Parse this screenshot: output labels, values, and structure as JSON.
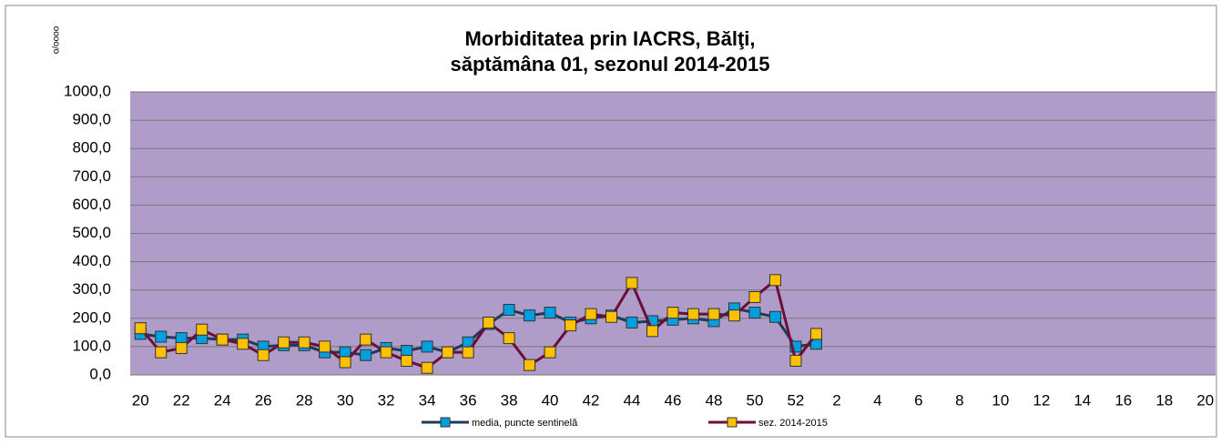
{
  "chart_data": {
    "type": "line",
    "title": [
      "Morbiditatea prin IACRS, Bălţi,",
      "săptămâna 01, sezonul  2014-2015"
    ],
    "y_label": "o/oooo",
    "categories": [
      "20",
      null,
      "22",
      null,
      "24",
      null,
      "26",
      null,
      "28",
      null,
      "30",
      null,
      "32",
      null,
      "34",
      null,
      "36",
      null,
      "38",
      null,
      "40",
      null,
      "42",
      null,
      "44",
      null,
      "46",
      null,
      "48",
      null,
      "50",
      null,
      "52",
      null,
      "2",
      null,
      "4",
      null,
      "6",
      null,
      "8",
      null,
      "10",
      null,
      "12",
      null,
      "14",
      null,
      "16",
      null,
      "18",
      null,
      "20"
    ],
    "series": [
      {
        "name": "media, puncte sentinelă",
        "color": "#1f3a5a",
        "marker_color": "#00a0e0",
        "values": [
          145,
          135,
          130,
          130,
          125,
          125,
          100,
          105,
          105,
          80,
          80,
          70,
          95,
          85,
          100,
          80,
          115,
          180,
          230,
          210,
          220,
          185,
          200,
          210,
          185,
          190,
          195,
          200,
          190,
          235,
          220,
          205,
          100,
          110,
          null,
          null,
          null,
          null,
          null,
          null,
          null,
          null,
          null,
          null,
          null,
          null,
          null,
          null,
          null,
          null,
          null,
          null,
          null
        ]
      },
      {
        "name": "sez. 2014-2015",
        "color": "#6b0f3a",
        "marker_color": "#ffc000",
        "values": [
          165,
          80,
          95,
          160,
          125,
          110,
          70,
          115,
          115,
          100,
          45,
          125,
          80,
          50,
          25,
          80,
          80,
          185,
          130,
          35,
          80,
          175,
          215,
          205,
          325,
          155,
          220,
          215,
          215,
          210,
          275,
          335,
          50,
          145,
          null,
          null,
          null,
          null,
          null,
          null,
          null,
          null,
          null,
          null,
          null,
          null,
          null,
          null,
          null,
          null,
          null,
          null,
          null
        ]
      }
    ],
    "ylim": [
      0,
      1000
    ],
    "yticks": [
      {
        "value": 0,
        "label": "0,0"
      },
      {
        "value": 100,
        "label": "100,0"
      },
      {
        "value": 200,
        "label": "200,0"
      },
      {
        "value": 300,
        "label": "300,0"
      },
      {
        "value": 400,
        "label": "400,0"
      },
      {
        "value": 500,
        "label": "500,0"
      },
      {
        "value": 600,
        "label": "600,0"
      },
      {
        "value": 700,
        "label": "700,0"
      },
      {
        "value": 800,
        "label": "800,0"
      },
      {
        "value": 900,
        "label": "900,0"
      },
      {
        "value": 1000,
        "label": "1000,0"
      }
    ],
    "grid": true,
    "plot_background": "#b09cc8",
    "legend": "bottom"
  }
}
